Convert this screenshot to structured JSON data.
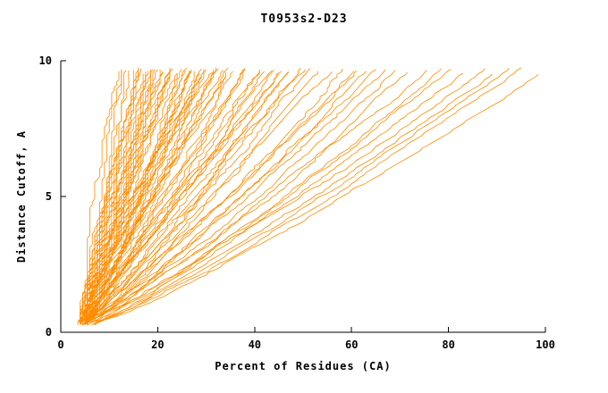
{
  "chart_data": {
    "type": "line",
    "title": "T0953s2-D23",
    "xlabel": "Percent of Residues (CA)",
    "ylabel": "Distance Cutoff, A",
    "xlim": [
      0,
      100
    ],
    "ylim": [
      0,
      10
    ],
    "xticks": [
      0,
      20,
      40,
      60,
      80,
      100
    ],
    "yticks": [
      0,
      5,
      10
    ],
    "grid": false,
    "legend": "none",
    "line_color": "#FF8C00",
    "axis_color": "#000000",
    "seed": 42,
    "curves_format": "[x_percent_at_cutoff_0, x_percent_at_cutoff_10, shape_exponent]",
    "curves": [
      [
        3.8,
        12,
        1.05
      ],
      [
        4.2,
        13,
        0.95
      ],
      [
        4.0,
        13.5,
        1.0
      ],
      [
        3.6,
        14,
        1.1
      ],
      [
        4.5,
        14.5,
        0.9
      ],
      [
        4.0,
        15,
        1.0
      ],
      [
        4.5,
        15.2,
        0.95
      ],
      [
        4.8,
        15.5,
        1.15
      ],
      [
        3.5,
        16,
        0.95
      ],
      [
        4.3,
        16.5,
        1.05
      ],
      [
        5.0,
        17,
        0.9
      ],
      [
        3.7,
        17.2,
        1.08
      ],
      [
        3.9,
        17.5,
        1.1
      ],
      [
        4.6,
        18,
        1.0
      ],
      [
        4.1,
        18.5,
        0.92
      ],
      [
        5.2,
        19,
        1.08
      ],
      [
        4.9,
        19.2,
        0.9
      ],
      [
        3.7,
        19.5,
        1.0
      ],
      [
        4.4,
        20,
        0.95
      ],
      [
        4.9,
        20.5,
        1.12
      ],
      [
        4.0,
        21,
        0.9
      ],
      [
        4.6,
        21.5,
        1.05
      ],
      [
        4.2,
        21.8,
        1.06
      ],
      [
        5.4,
        22,
        0.98
      ],
      [
        3.8,
        22.5,
        1.1
      ],
      [
        4.2,
        23,
        0.93
      ],
      [
        5.0,
        23.5,
        1.02
      ],
      [
        4.5,
        24,
        1.08
      ],
      [
        5.0,
        24.2,
        0.94
      ],
      [
        3.9,
        24.5,
        0.96
      ],
      [
        4.7,
        25,
        1.04
      ],
      [
        5.3,
        25.5,
        0.9
      ],
      [
        4.1,
        26,
        1.12
      ],
      [
        4.4,
        26.2,
        1.02
      ],
      [
        4.8,
        26.5,
        0.97
      ],
      [
        4.3,
        27,
        1.05
      ],
      [
        5.1,
        27.5,
        0.92
      ],
      [
        3.9,
        28,
        1.0
      ],
      [
        4.6,
        28.5,
        1.1
      ],
      [
        5.5,
        29,
        0.95
      ],
      [
        5.2,
        29.5,
        0.9
      ],
      [
        4.2,
        30,
        1.03
      ],
      [
        4.9,
        30.5,
        0.9
      ],
      [
        4.4,
        31,
        1.07
      ],
      [
        5.2,
        32,
        0.96
      ],
      [
        4.0,
        32.5,
        1.02
      ],
      [
        4.7,
        33,
        0.92
      ],
      [
        4.6,
        33.5,
        1.0
      ],
      [
        5.6,
        34,
        1.05
      ],
      [
        4.3,
        35,
        0.98
      ],
      [
        5.0,
        36,
        0.9
      ],
      [
        4.5,
        37,
        1.04
      ],
      [
        5.3,
        38,
        0.95
      ],
      [
        4.1,
        39,
        1.0
      ],
      [
        4.8,
        40,
        0.92
      ],
      [
        5.7,
        41,
        1.02
      ],
      [
        4.4,
        42,
        0.96
      ],
      [
        5.1,
        43,
        0.9
      ],
      [
        4.6,
        44,
        1.0
      ],
      [
        5.4,
        45,
        0.93
      ],
      [
        4.9,
        46,
        0.97
      ],
      [
        5.8,
        47,
        0.9
      ],
      [
        5.2,
        48,
        0.95
      ],
      [
        5.8,
        49,
        0.9
      ],
      [
        4.7,
        50,
        0.92
      ],
      [
        5.5,
        52,
        0.96
      ],
      [
        5.0,
        54,
        0.9
      ],
      [
        5.9,
        56,
        0.93
      ],
      [
        5.3,
        58,
        0.88
      ],
      [
        4.8,
        60,
        0.92
      ],
      [
        5.6,
        62,
        0.9
      ],
      [
        6.0,
        64,
        0.87
      ],
      [
        5.4,
        66,
        0.9
      ],
      [
        6.2,
        68,
        0.88
      ],
      [
        5.7,
        70,
        0.9
      ],
      [
        6.4,
        72,
        0.86
      ],
      [
        5.9,
        75,
        0.89
      ],
      [
        6.6,
        78,
        0.87
      ],
      [
        6.1,
        81,
        0.9
      ],
      [
        6.8,
        84,
        0.86
      ],
      [
        6.3,
        87,
        0.88
      ],
      [
        7.0,
        90,
        0.86
      ],
      [
        6.5,
        93,
        0.88
      ],
      [
        7.2,
        96,
        0.85
      ],
      [
        7.5,
        98,
        0.87
      ]
    ]
  }
}
